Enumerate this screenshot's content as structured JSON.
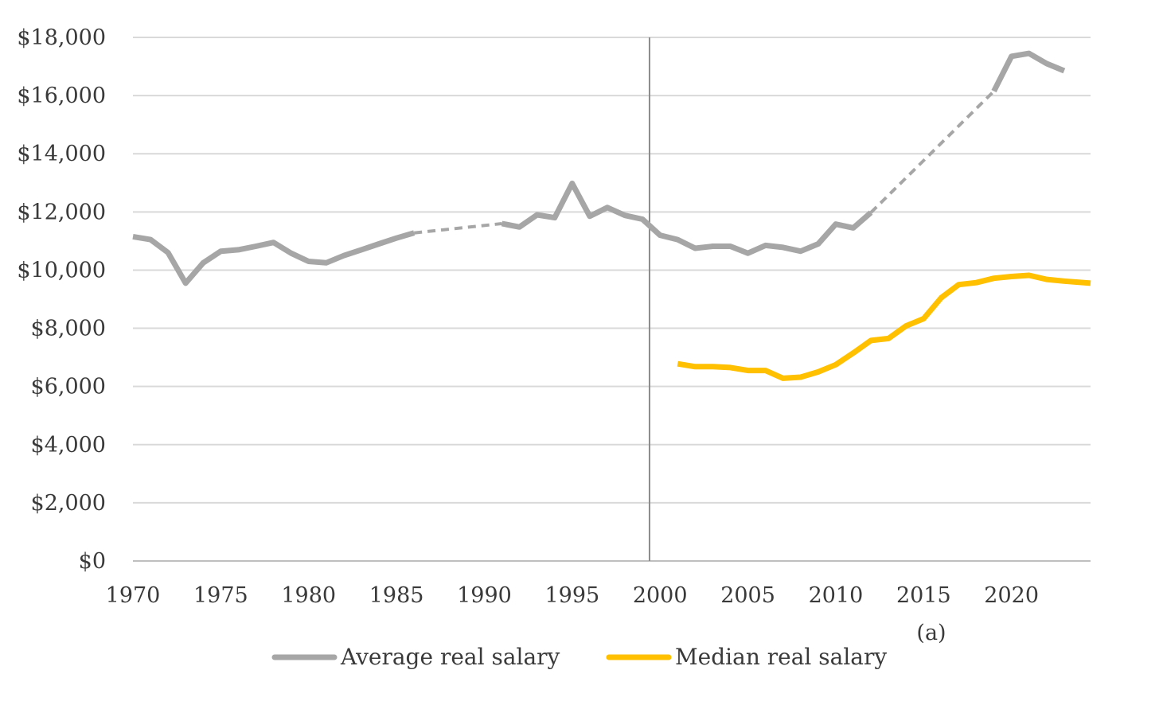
{
  "chart_data": {
    "type": "line",
    "title": "",
    "xlabel": "",
    "ylabel": "",
    "annotation": "(a)",
    "xlim": [
      1970,
      2024.5
    ],
    "ylim": [
      0,
      18000
    ],
    "x_ticks": [
      1970,
      1975,
      1980,
      1985,
      1990,
      1995,
      2000,
      2005,
      2010,
      2015,
      2020
    ],
    "x_tick_labels": [
      "1970",
      "1975",
      "1980",
      "1985",
      "1990",
      "1995",
      "2000",
      "2005",
      "2010",
      "2015",
      "2020"
    ],
    "y_ticks": [
      0,
      2000,
      4000,
      6000,
      8000,
      10000,
      12000,
      14000,
      16000,
      18000
    ],
    "y_tick_labels": [
      "$0",
      "$2,000",
      "$4,000",
      "$6,000",
      "$8,000",
      "$10,000",
      "$12,000",
      "$14,000",
      "$16,000",
      "$18,000"
    ],
    "grid": "horizontal",
    "vertical_marker_x": 1999.4,
    "legend_position": "bottom",
    "series": [
      {
        "name": "Average real salary",
        "color": "#a6a6a6",
        "values": [
          [
            1970,
            11150
          ],
          [
            1971,
            11050
          ],
          [
            1972,
            10600
          ],
          [
            1973,
            9550
          ],
          [
            1974,
            10250
          ],
          [
            1975,
            10650
          ],
          [
            1976,
            10700
          ],
          [
            1977,
            10820
          ],
          [
            1978,
            10950
          ],
          [
            1979,
            10580
          ],
          [
            1980,
            10300
          ],
          [
            1981,
            10250
          ],
          [
            1982,
            10500
          ],
          [
            1983,
            10700
          ],
          [
            1984,
            10900
          ],
          [
            1985,
            11100
          ],
          [
            1986,
            11280
          ],
          [
            1991,
            11600
          ],
          [
            1992,
            11480
          ],
          [
            1993,
            11900
          ],
          [
            1994,
            11800
          ],
          [
            1995,
            12980
          ],
          [
            1996,
            11850
          ],
          [
            1997,
            12150
          ],
          [
            1998,
            11880
          ],
          [
            1999,
            11750
          ],
          [
            2000,
            11200
          ],
          [
            2001,
            11050
          ],
          [
            2002,
            10750
          ],
          [
            2003,
            10820
          ],
          [
            2004,
            10820
          ],
          [
            2005,
            10580
          ],
          [
            2006,
            10850
          ],
          [
            2007,
            10780
          ],
          [
            2008,
            10650
          ],
          [
            2009,
            10900
          ],
          [
            2010,
            11580
          ],
          [
            2011,
            11450
          ],
          [
            2012,
            11980
          ],
          [
            2019,
            16150
          ],
          [
            2020,
            17350
          ],
          [
            2021,
            17450
          ],
          [
            2022,
            17100
          ],
          [
            2023,
            16850
          ]
        ],
        "interpolated_segments": [
          [
            [
              1986,
              11280
            ],
            [
              1991,
              11600
            ]
          ],
          [
            [
              2012,
              11980
            ],
            [
              2019,
              16150
            ]
          ]
        ]
      },
      {
        "name": "Median real salary",
        "color": "#ffc000",
        "values": [
          [
            2001,
            6780
          ],
          [
            2002,
            6680
          ],
          [
            2003,
            6680
          ],
          [
            2004,
            6650
          ],
          [
            2005,
            6550
          ],
          [
            2006,
            6550
          ],
          [
            2007,
            6280
          ],
          [
            2008,
            6320
          ],
          [
            2009,
            6500
          ],
          [
            2010,
            6750
          ],
          [
            2011,
            7150
          ],
          [
            2012,
            7580
          ],
          [
            2013,
            7650
          ],
          [
            2014,
            8080
          ],
          [
            2015,
            8330
          ],
          [
            2016,
            9050
          ],
          [
            2017,
            9500
          ],
          [
            2018,
            9570
          ],
          [
            2019,
            9720
          ],
          [
            2020,
            9780
          ],
          [
            2021,
            9820
          ],
          [
            2022,
            9680
          ],
          [
            2023,
            9620
          ],
          [
            2024.5,
            9550
          ]
        ]
      }
    ]
  }
}
